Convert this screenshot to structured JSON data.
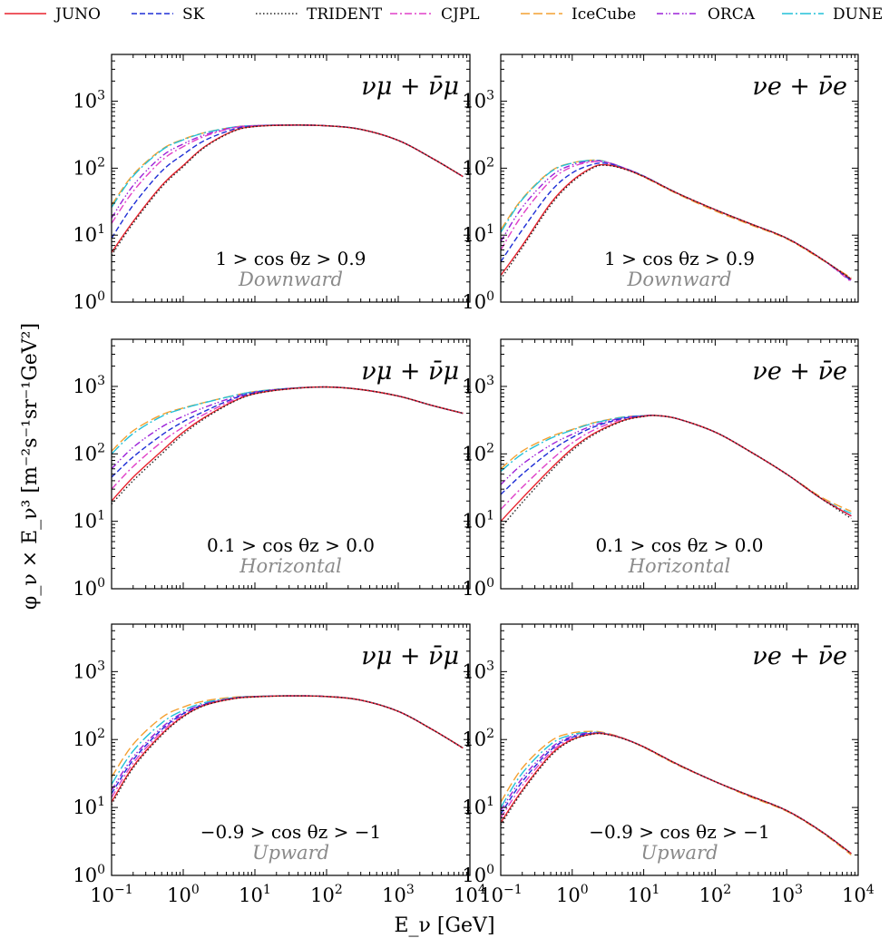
{
  "legend": [
    {
      "name": "JUNO",
      "color": "#e8222d",
      "dash": "solid"
    },
    {
      "name": "SK",
      "color": "#1f2fd6",
      "dash": "dashed"
    },
    {
      "name": "TRIDENT",
      "color": "#222222",
      "dash": "dotted"
    },
    {
      "name": "CJPL",
      "color": "#e040c8",
      "dash": "dashdot"
    },
    {
      "name": "IceCube",
      "color": "#f4a030",
      "dash": "longdash"
    },
    {
      "name": "ORCA",
      "color": "#9b20d8",
      "dash": "dashdotdot"
    },
    {
      "name": "DUNE",
      "color": "#22c0d8",
      "dash": "dashdotlong"
    }
  ],
  "xlabel": "E_ν [GeV]",
  "ylabel": "φ_ν × E_ν³ [m⁻²s⁻¹sr⁻¹GeV²]",
  "chart_data": {
    "type": "line",
    "xscale": "log",
    "yscale": "log",
    "xlim": [
      0.1,
      10000
    ],
    "ylim": [
      1,
      5000
    ],
    "xticks": [
      {
        "value": 0.1,
        "base": "10",
        "exp": "−1"
      },
      {
        "value": 1,
        "base": "10",
        "exp": "0"
      },
      {
        "value": 10,
        "base": "10",
        "exp": "1"
      },
      {
        "value": 100,
        "base": "10",
        "exp": "2"
      },
      {
        "value": 1000,
        "base": "10",
        "exp": "3"
      },
      {
        "value": 10000,
        "base": "10",
        "exp": "4"
      }
    ],
    "yticks": [
      {
        "value": 1,
        "base": "10",
        "exp": "0"
      },
      {
        "value": 10,
        "base": "10",
        "exp": "1"
      },
      {
        "value": 100,
        "base": "10",
        "exp": "2"
      },
      {
        "value": 1000,
        "base": "10",
        "exp": "3"
      }
    ],
    "legend_position": "top",
    "grid": false,
    "panels": [
      {
        "flavor": "νμ + ν̄μ",
        "cos_label": "1 > cos θz > 0.9",
        "direction": "Downward",
        "x": [
          0.1,
          0.2,
          0.5,
          1,
          2,
          5,
          10,
          30,
          100,
          300,
          1000,
          3000,
          8000
        ],
        "series": [
          {
            "name": "JUNO",
            "values": [
              5.5,
              16,
              55,
              110,
              210,
              360,
              420,
              440,
              430,
              380,
              260,
              140,
              75
            ]
          },
          {
            "name": "SK",
            "values": [
              9,
              28,
              90,
              160,
              260,
              380,
              425,
              440,
              430,
              380,
              260,
              140,
              75
            ]
          },
          {
            "name": "TRIDENT",
            "values": [
              5,
              15,
              52,
              105,
              205,
              355,
              418,
              440,
              430,
              380,
              260,
              140,
              75
            ]
          },
          {
            "name": "CJPL",
            "values": [
              15,
              45,
              130,
              210,
              300,
              400,
              430,
              440,
              430,
              380,
              260,
              140,
              75
            ]
          },
          {
            "name": "IceCube",
            "values": [
              28,
              80,
              190,
              270,
              340,
              410,
              432,
              440,
              430,
              380,
              260,
              140,
              75
            ]
          },
          {
            "name": "ORCA",
            "values": [
              18,
              55,
              150,
              230,
              315,
              405,
              430,
              440,
              430,
              380,
              260,
              140,
              75
            ]
          },
          {
            "name": "DUNE",
            "values": [
              26,
              76,
              185,
              265,
              338,
              410,
              432,
              440,
              430,
              380,
              260,
              140,
              75
            ]
          }
        ]
      },
      {
        "flavor": "νe + ν̄e",
        "cos_label": "1 > cos θz > 0.9",
        "direction": "Downward",
        "x": [
          0.1,
          0.2,
          0.5,
          1,
          2,
          3,
          5,
          10,
          30,
          100,
          300,
          1000,
          3000,
          8000
        ],
        "series": [
          {
            "name": "JUNO",
            "values": [
              2.5,
              7,
              30,
              65,
              105,
              112,
              100,
              75,
              42,
              24,
              15,
              9,
              4.5,
              2.2
            ]
          },
          {
            "name": "SK",
            "values": [
              4,
              12,
              45,
              85,
              115,
              118,
              102,
              76,
              42,
              24,
              15,
              9,
              4.5,
              2.1
            ]
          },
          {
            "name": "TRIDENT",
            "values": [
              2.2,
              6.5,
              28,
              62,
              102,
              110,
              99,
              75,
              42,
              24,
              15,
              9,
              4.5,
              2.2
            ]
          },
          {
            "name": "CJPL",
            "values": [
              6,
              20,
              65,
              105,
              125,
              122,
              103,
              76,
              42,
              24,
              15,
              9,
              4.5,
              2.0
            ]
          },
          {
            "name": "IceCube",
            "values": [
              12,
              35,
              90,
              120,
              132,
              124,
              103,
              74,
              41,
              23,
              14.5,
              8.8,
              4.4,
              2.3
            ]
          },
          {
            "name": "ORCA",
            "values": [
              8,
              26,
              75,
              112,
              128,
              123,
              103,
              76,
              42,
              24,
              15,
              9,
              4.5,
              2.1
            ]
          },
          {
            "name": "DUNE",
            "values": [
              11,
              34,
              88,
              119,
              131,
              124,
              103,
              76,
              42,
              24,
              15,
              9,
              4.5,
              2.2
            ]
          }
        ]
      },
      {
        "flavor": "νμ + ν̄μ",
        "cos_label": "0.1 > cos θz > 0.0",
        "direction": "Horizontal",
        "x": [
          0.1,
          0.2,
          0.5,
          1,
          2,
          5,
          10,
          30,
          100,
          300,
          1000,
          3000,
          8000
        ],
        "series": [
          {
            "name": "JUNO",
            "values": [
              20,
              45,
              110,
              210,
              350,
              600,
              780,
              920,
              980,
              900,
              720,
              520,
              400
            ]
          },
          {
            "name": "SK",
            "values": [
              45,
              90,
              190,
              300,
              430,
              660,
              810,
              930,
              980,
              900,
              720,
              520,
              400
            ]
          },
          {
            "name": "TRIDENT",
            "values": [
              18,
              40,
              100,
              195,
              335,
              590,
              775,
              918,
              980,
              900,
              720,
              520,
              400
            ]
          },
          {
            "name": "CJPL",
            "values": [
              30,
              65,
              150,
              250,
              390,
              630,
              795,
              925,
              980,
              900,
              720,
              520,
              400
            ]
          },
          {
            "name": "IceCube",
            "values": [
              110,
              220,
              380,
              480,
              580,
              730,
              840,
              935,
              980,
              900,
              720,
              520,
              400
            ]
          },
          {
            "name": "ORCA",
            "values": [
              60,
              125,
              250,
              360,
              490,
              690,
              820,
              930,
              980,
              900,
              720,
              520,
              400
            ]
          },
          {
            "name": "DUNE",
            "values": [
              100,
              200,
              360,
              470,
              575,
              728,
              838,
              935,
              980,
              900,
              720,
              520,
              400
            ]
          }
        ]
      },
      {
        "flavor": "νe + ν̄e",
        "cos_label": "0.1 > cos θz > 0.0",
        "direction": "Horizontal",
        "x": [
          0.1,
          0.2,
          0.5,
          1,
          2,
          5,
          10,
          15,
          30,
          100,
          300,
          1000,
          3000,
          8000
        ],
        "series": [
          {
            "name": "JUNO",
            "values": [
              10,
              22,
              60,
              120,
              200,
              310,
              360,
              370,
              330,
              210,
              110,
              50,
              22,
              12
            ]
          },
          {
            "name": "SK",
            "values": [
              25,
              50,
              110,
              175,
              250,
              335,
              365,
              370,
              330,
              210,
              110,
              50,
              22,
              12
            ]
          },
          {
            "name": "TRIDENT",
            "values": [
              8,
              19,
              55,
              112,
              192,
              305,
              358,
              370,
              330,
              210,
              110,
              50,
              22,
              11
            ]
          },
          {
            "name": "CJPL",
            "values": [
              15,
              32,
              80,
              145,
              225,
              325,
              362,
              370,
              330,
              210,
              110,
              50,
              22,
              12
            ]
          },
          {
            "name": "IceCube",
            "values": [
              60,
              110,
              180,
              230,
              290,
              350,
              368,
              370,
              330,
              210,
              110,
              50,
              23,
              14
            ]
          },
          {
            "name": "ORCA",
            "values": [
              35,
              70,
              135,
              195,
              265,
              340,
              366,
              370,
              330,
              210,
              110,
              50,
              22,
              12
            ]
          },
          {
            "name": "DUNE",
            "values": [
              55,
              100,
              170,
              225,
              285,
              348,
              368,
              370,
              330,
              210,
              110,
              50,
              22,
              13
            ]
          }
        ]
      },
      {
        "flavor": "νμ + ν̄μ",
        "cos_label": "−0.9 > cos θz > −1",
        "direction": "Upward",
        "x": [
          0.1,
          0.2,
          0.5,
          1,
          2,
          5,
          10,
          30,
          100,
          300,
          1000,
          3000,
          8000
        ],
        "series": [
          {
            "name": "JUNO",
            "values": [
              12,
              40,
              120,
              220,
              320,
              400,
              425,
              440,
              430,
              380,
              260,
              140,
              75
            ]
          },
          {
            "name": "SK",
            "values": [
              16,
              50,
              140,
              240,
              330,
              405,
              428,
              440,
              430,
              380,
              260,
              140,
              75
            ]
          },
          {
            "name": "TRIDENT",
            "values": [
              11,
              38,
              115,
              215,
              318,
              398,
              424,
              440,
              430,
              380,
              260,
              140,
              75
            ]
          },
          {
            "name": "CJPL",
            "values": [
              14,
              45,
              130,
              230,
              325,
              402,
              426,
              440,
              430,
              380,
              260,
              140,
              75
            ]
          },
          {
            "name": "IceCube",
            "values": [
              28,
              85,
              210,
              300,
              370,
              420,
              432,
              440,
              430,
              380,
              260,
              140,
              75
            ]
          },
          {
            "name": "ORCA",
            "values": [
              18,
              55,
              150,
              250,
              335,
              407,
              429,
              440,
              430,
              380,
              260,
              140,
              75
            ]
          },
          {
            "name": "DUNE",
            "values": [
              22,
              68,
              175,
              270,
              350,
              412,
              430,
              440,
              430,
              380,
              260,
              140,
              75
            ]
          }
        ]
      },
      {
        "flavor": "νe + ν̄e",
        "cos_label": "−0.9 > cos θz > −1",
        "direction": "Upward",
        "x": [
          0.1,
          0.2,
          0.5,
          1,
          2,
          3,
          5,
          10,
          30,
          100,
          300,
          1000,
          3000,
          8000
        ],
        "series": [
          {
            "name": "JUNO",
            "values": [
              6,
              18,
              60,
              100,
              122,
              120,
              105,
              78,
              43,
              24,
              15,
              9,
              4.5,
              2.1
            ]
          },
          {
            "name": "SK",
            "values": [
              8,
              24,
              70,
              108,
              124,
              121,
              105,
              78,
              43,
              24,
              15,
              9,
              4.5,
              2.1
            ]
          },
          {
            "name": "TRIDENT",
            "values": [
              5.5,
              17,
              57,
              98,
              121,
              119,
              104,
              78,
              43,
              24,
              15,
              9,
              4.5,
              2.1
            ]
          },
          {
            "name": "CJPL",
            "values": [
              7,
              21,
              65,
              104,
              123,
              120,
              105,
              78,
              43,
              24,
              15,
              9,
              4.5,
              2.1
            ]
          },
          {
            "name": "IceCube",
            "values": [
              12,
              38,
              95,
              125,
              132,
              124,
              106,
              77,
              42,
              24,
              14.5,
              8.8,
              4.4,
              2.0
            ]
          },
          {
            "name": "ORCA",
            "values": [
              9,
              27,
              75,
              112,
              126,
              121,
              105,
              78,
              43,
              24,
              15,
              9,
              4.5,
              2.1
            ]
          },
          {
            "name": "DUNE",
            "values": [
              10,
              32,
              85,
              118,
              128,
              122,
              105,
              78,
              43,
              24,
              15,
              9,
              4.5,
              2.1
            ]
          }
        ]
      }
    ]
  }
}
